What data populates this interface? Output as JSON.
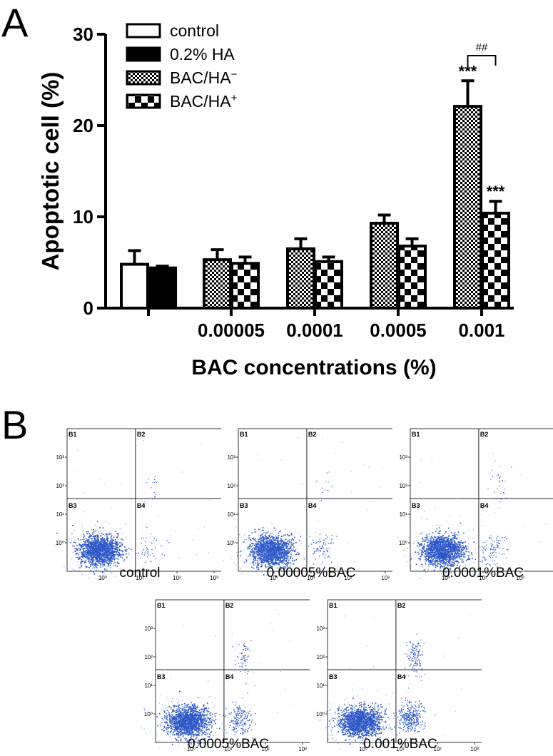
{
  "panel_a": {
    "letter": "A"
  },
  "panel_b": {
    "letter": "B"
  },
  "colors": {
    "ink": "#000000",
    "dot": "#2e57c7",
    "dot_light": "#7f9ce0"
  },
  "chart_data": [
    {
      "type": "bar",
      "title": "",
      "xlabel": "BAC concentrations (%)",
      "ylabel": "Apoptotic cell (%)",
      "ylim": [
        0,
        30
      ],
      "yticks": [
        0,
        10,
        20,
        30
      ],
      "grid": false,
      "legend_placement": "top-left",
      "legend": [
        {
          "name": "control",
          "pattern": "empty"
        },
        {
          "name": "0.2% HA",
          "pattern": "solid"
        },
        {
          "name": "BAC/HA",
          "sup": "−",
          "pattern": "fine-check"
        },
        {
          "name": "BAC/HA",
          "sup": "+",
          "pattern": "coarse-check"
        }
      ],
      "groups": [
        {
          "label": "",
          "bars": [
            {
              "series": "control",
              "value": 4.8,
              "error": 1.5
            },
            {
              "series": "0.2% HA",
              "value": 4.4,
              "error": 0.2
            }
          ]
        },
        {
          "label": "0.00005",
          "bars": [
            {
              "series": "BAC/HA-",
              "value": 5.3,
              "error": 1.1
            },
            {
              "series": "BAC/HA+",
              "value": 4.9,
              "error": 0.7
            }
          ]
        },
        {
          "label": "0.0001",
          "bars": [
            {
              "series": "BAC/HA-",
              "value": 6.5,
              "error": 1.1
            },
            {
              "series": "BAC/HA+",
              "value": 5.1,
              "error": 0.5
            }
          ]
        },
        {
          "label": "0.0005",
          "bars": [
            {
              "series": "BAC/HA-",
              "value": 9.3,
              "error": 0.9
            },
            {
              "series": "BAC/HA+",
              "value": 6.8,
              "error": 0.8
            }
          ]
        },
        {
          "label": "0.001",
          "bars": [
            {
              "series": "BAC/HA-",
              "value": 22.1,
              "error": 2.8,
              "annotation": "***"
            },
            {
              "series": "BAC/HA+",
              "value": 10.4,
              "error": 1.3,
              "annotation": "***"
            }
          ]
        }
      ],
      "bracket": {
        "between_group": "0.001",
        "label": "##"
      }
    },
    {
      "type": "scatter",
      "x_axis": {
        "scale": "log",
        "ticks": [
          "10⁰",
          "10¹",
          "10²",
          "10³"
        ]
      },
      "y_axis": {
        "scale": "log",
        "ticks": [
          "10⁰",
          "10¹",
          "10²",
          "10³"
        ]
      },
      "quadrants": [
        "B1",
        "B2",
        "B3",
        "B4"
      ],
      "plots": [
        {
          "label": "control",
          "profile": "p0"
        },
        {
          "label": "0.00005%BAC",
          "profile": "p1"
        },
        {
          "label": "0.0001%BAC",
          "profile": "p2"
        },
        {
          "label": "0.0005%BAC",
          "profile": "p3"
        },
        {
          "label": "0.001%BAC",
          "profile": "p4"
        }
      ]
    }
  ]
}
